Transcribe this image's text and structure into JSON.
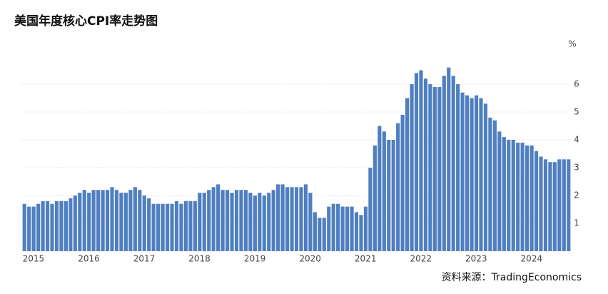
{
  "chart_data": {
    "type": "bar",
    "title": "美国年度核心CPI率走势图",
    "unit": "%",
    "source": "资料来源：TradingEconomics",
    "categories": [
      "2015",
      null,
      null,
      null,
      null,
      null,
      null,
      null,
      null,
      null,
      null,
      null,
      "2016",
      null,
      null,
      null,
      null,
      null,
      null,
      null,
      null,
      null,
      null,
      null,
      "2017",
      null,
      null,
      null,
      null,
      null,
      null,
      null,
      null,
      null,
      null,
      null,
      "2018",
      null,
      null,
      null,
      null,
      null,
      null,
      null,
      null,
      null,
      null,
      null,
      "2019",
      null,
      null,
      null,
      null,
      null,
      null,
      null,
      null,
      null,
      null,
      null,
      "2020",
      null,
      null,
      null,
      null,
      null,
      null,
      null,
      null,
      null,
      null,
      null,
      "2021",
      null,
      null,
      null,
      null,
      null,
      null,
      null,
      null,
      null,
      null,
      null,
      "2022",
      null,
      null,
      null,
      null,
      null,
      null,
      null,
      null,
      null,
      null,
      null,
      "2023",
      null,
      null,
      null,
      null,
      null,
      null,
      null,
      null,
      null,
      null,
      null,
      "2024",
      null,
      null,
      null,
      null,
      null,
      null,
      null,
      null,
      null,
      null
    ],
    "values": [
      1.7,
      1.6,
      1.6,
      1.7,
      1.8,
      1.8,
      1.7,
      1.8,
      1.8,
      1.8,
      1.9,
      2.0,
      2.1,
      2.2,
      2.1,
      2.2,
      2.2,
      2.2,
      2.2,
      2.3,
      2.2,
      2.1,
      2.1,
      2.2,
      2.3,
      2.2,
      2.0,
      1.9,
      1.7,
      1.7,
      1.7,
      1.7,
      1.7,
      1.8,
      1.7,
      1.8,
      1.8,
      1.8,
      2.1,
      2.1,
      2.2,
      2.3,
      2.4,
      2.2,
      2.2,
      2.1,
      2.2,
      2.2,
      2.2,
      2.1,
      2.0,
      2.1,
      2.0,
      2.1,
      2.2,
      2.4,
      2.4,
      2.3,
      2.3,
      2.3,
      2.3,
      2.4,
      2.1,
      1.4,
      1.2,
      1.2,
      1.6,
      1.7,
      1.7,
      1.6,
      1.6,
      1.6,
      1.4,
      1.3,
      1.6,
      3.0,
      3.8,
      4.5,
      4.3,
      4.0,
      4.0,
      4.6,
      4.9,
      5.5,
      6.0,
      6.4,
      6.5,
      6.2,
      6.0,
      5.9,
      5.9,
      6.3,
      6.6,
      6.3,
      6.0,
      5.7,
      5.6,
      5.5,
      5.6,
      5.5,
      5.3,
      4.8,
      4.7,
      4.3,
      4.1,
      4.0,
      4.0,
      3.9,
      3.9,
      3.8,
      3.8,
      3.6,
      3.4,
      3.3,
      3.2,
      3.2,
      3.3,
      3.3,
      3.3
    ],
    "color": "#4f7fc0",
    "ylim": [
      0,
      7
    ],
    "yticks": [
      1,
      2,
      3,
      4,
      5,
      6
    ],
    "grid": true
  }
}
